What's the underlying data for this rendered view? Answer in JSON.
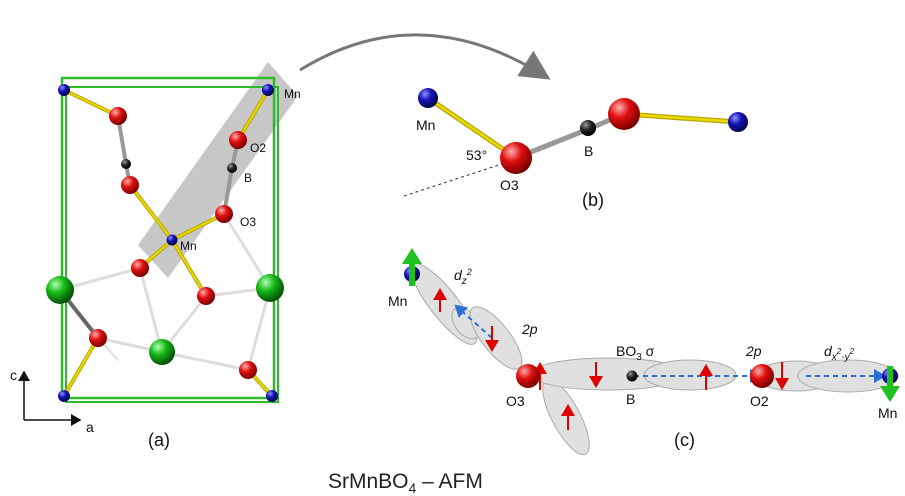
{
  "title": {
    "main": "SrMnBO",
    "sub": "4",
    "tail": " – AFM"
  },
  "panel_a": {
    "label": "(a)",
    "atoms": {
      "mn_top": "Mn",
      "mn_mid": "Mn",
      "o2": "O2",
      "b": "B",
      "o3": "O3"
    },
    "axes": {
      "c": "c",
      "a": "a"
    }
  },
  "panel_b": {
    "label": "(b)",
    "atoms": {
      "mn": "Mn",
      "b": "B",
      "o3": "O3"
    },
    "angle": "53°"
  },
  "panel_c": {
    "label": "(c)",
    "atoms": {
      "mn_left": "Mn",
      "mn_right": "Mn",
      "o3": "O3",
      "b": "B",
      "o2": "O2"
    },
    "orbitals": {
      "dz_base": "d",
      "dz_sub": "z",
      "dz_sup": "2",
      "p_left": "2p",
      "p_right": "2p",
      "bo3_base": "BO",
      "bo3_sub": "3",
      "bo3_sigma": " σ",
      "dx_base": "d",
      "dx_sub": "x",
      "dx_sup": "2",
      "dx_sub2": "-y",
      "dx_sup2": "2"
    }
  },
  "colors": {
    "cell": "#2dbb2d",
    "mn": "#1414b4",
    "oxygen": "#e01010",
    "sr": "#16b816",
    "boron": "#111111",
    "bond_yellow": "#e8d800",
    "spin_arrow": "#e00000",
    "moment_arrow": "#20c020",
    "orbital_fill": "#e0e0e0",
    "highlight": "#bdbdbd"
  }
}
